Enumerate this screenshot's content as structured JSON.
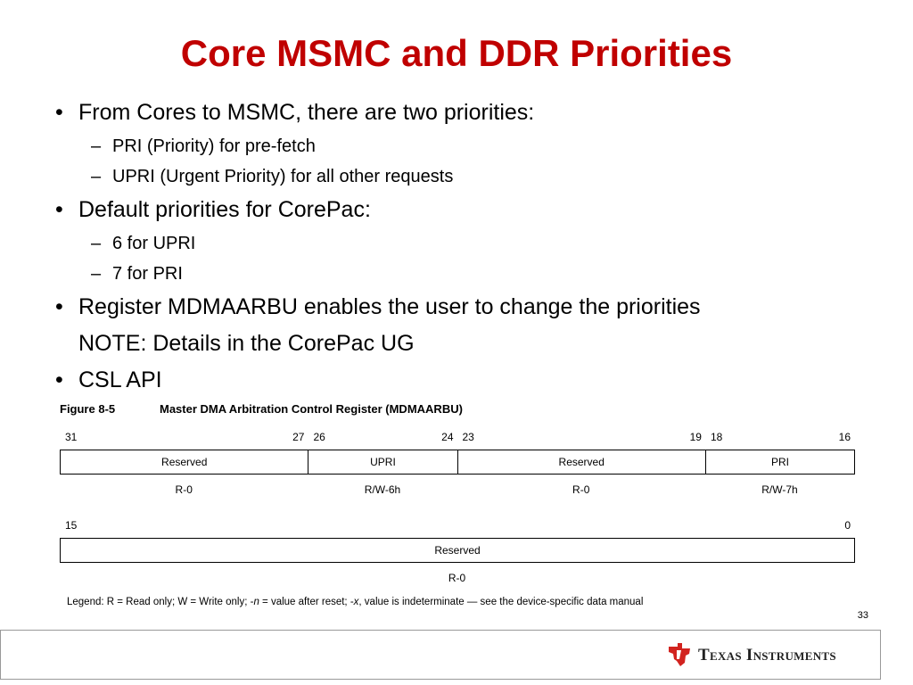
{
  "title": "Core MSMC and DDR Priorities",
  "bullets": [
    {
      "text": "From Cores to MSMC, there are two priorities:",
      "sub": [
        "PRI (Priority) for pre-fetch",
        "UPRI (Urgent Priority) for all other requests"
      ]
    },
    {
      "text": "Default priorities for CorePac:",
      "sub": [
        "6 for UPRI",
        "7 for PRI"
      ]
    },
    {
      "text": "Register MDMAARBU enables the user to change the priorities",
      "note": "NOTE: Details in the CorePac UG"
    },
    {
      "text": "CSL API"
    }
  ],
  "figure": {
    "label": "Figure 8-5",
    "caption": "Master DMA Arbitration Control Register (MDMAARBU)",
    "rows": [
      {
        "fields": [
          {
            "high": 31,
            "low": 27,
            "name": "Reserved",
            "access": "R-0"
          },
          {
            "high": 26,
            "low": 24,
            "name": "UPRI",
            "access": "R/W-6h"
          },
          {
            "high": 23,
            "low": 19,
            "name": "Reserved",
            "access": "R-0"
          },
          {
            "high": 18,
            "low": 16,
            "name": "PRI",
            "access": "R/W-7h"
          }
        ]
      },
      {
        "fields": [
          {
            "high": 15,
            "low": 0,
            "name": "Reserved",
            "access": "R-0"
          }
        ]
      }
    ],
    "legend": [
      "Legend: R = Read only; W = Write only; -",
      "n",
      " = value after reset; -",
      "x",
      ", value is indeterminate — see the device-specific data manual"
    ]
  },
  "page_number": "33",
  "footer": {
    "brand": "Texas Instruments"
  }
}
